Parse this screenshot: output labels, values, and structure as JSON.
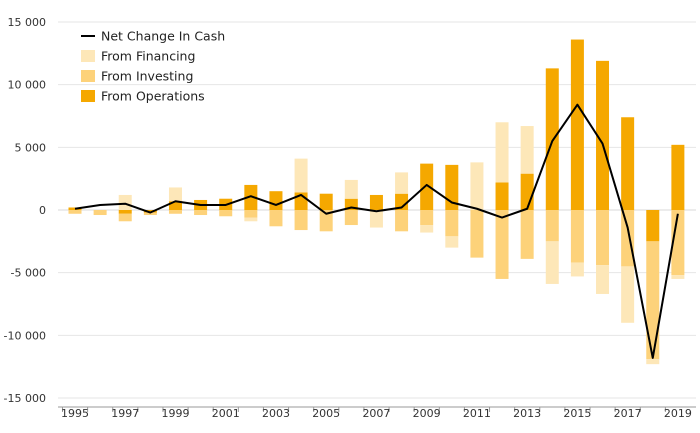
{
  "chart_data": {
    "type": "bar",
    "title": "",
    "xlabel": "",
    "ylabel": "",
    "ylim": [
      -15000,
      15000
    ],
    "y_ticks": [
      -15000,
      -10000,
      -5000,
      0,
      5000,
      10000,
      15000
    ],
    "y_tick_labels": [
      "-15 000",
      "-10 000",
      "-5 000",
      "0",
      "5 000",
      "10 000",
      "15 000"
    ],
    "x": [
      1995,
      1996,
      1997,
      1998,
      1999,
      2000,
      2001,
      2002,
      2003,
      2004,
      2005,
      2006,
      2007,
      2008,
      2009,
      2010,
      2011,
      2012,
      2013,
      2014,
      2015,
      2016,
      2017,
      2018,
      2019
    ],
    "x_tick_labels": [
      "1995",
      "1997",
      "1999",
      "2001",
      "2003",
      "2005",
      "2007",
      "2009",
      "2011",
      "2013",
      "2015",
      "2017",
      "2019"
    ],
    "legend_position": "top-left",
    "grid": true,
    "stacked": true,
    "series": [
      {
        "name": "From Operations",
        "type": "bar",
        "color": "#f5a800",
        "values": [
          200,
          0,
          -300,
          -200,
          700,
          800,
          900,
          2000,
          1500,
          1400,
          1300,
          900,
          1200,
          1300,
          3700,
          3600,
          0,
          2200,
          2900,
          11300,
          13600,
          11900,
          7400,
          -2500,
          5200
        ]
      },
      {
        "name": "From Investing",
        "type": "bar",
        "color": "#fdd27a",
        "values": [
          -300,
          -400,
          -600,
          -200,
          -300,
          -400,
          -500,
          -600,
          -1300,
          -1600,
          -1700,
          -1200,
          0,
          -1700,
          -1200,
          -2100,
          -3800,
          -5500,
          -3900,
          -2500,
          -4200,
          -4400,
          -4500,
          -9400,
          -5200
        ]
      },
      {
        "name": "From Financing",
        "type": "bar",
        "color": "#fde7b8",
        "values": [
          0,
          0,
          1200,
          0,
          1100,
          0,
          0,
          -300,
          0,
          2700,
          0,
          1500,
          -1400,
          1700,
          -600,
          -900,
          3800,
          4800,
          3800,
          -3400,
          -1100,
          -2300,
          -4500,
          -400,
          -300
        ]
      },
      {
        "name": "Net Change In Cash",
        "type": "line",
        "color": "#000000",
        "values": [
          100,
          400,
          500,
          -200,
          700,
          400,
          400,
          1100,
          400,
          1200,
          -300,
          200,
          -100,
          200,
          2000,
          600,
          100,
          -600,
          100,
          5500,
          8400,
          5300,
          -1400,
          -11800,
          -300
        ]
      }
    ]
  }
}
